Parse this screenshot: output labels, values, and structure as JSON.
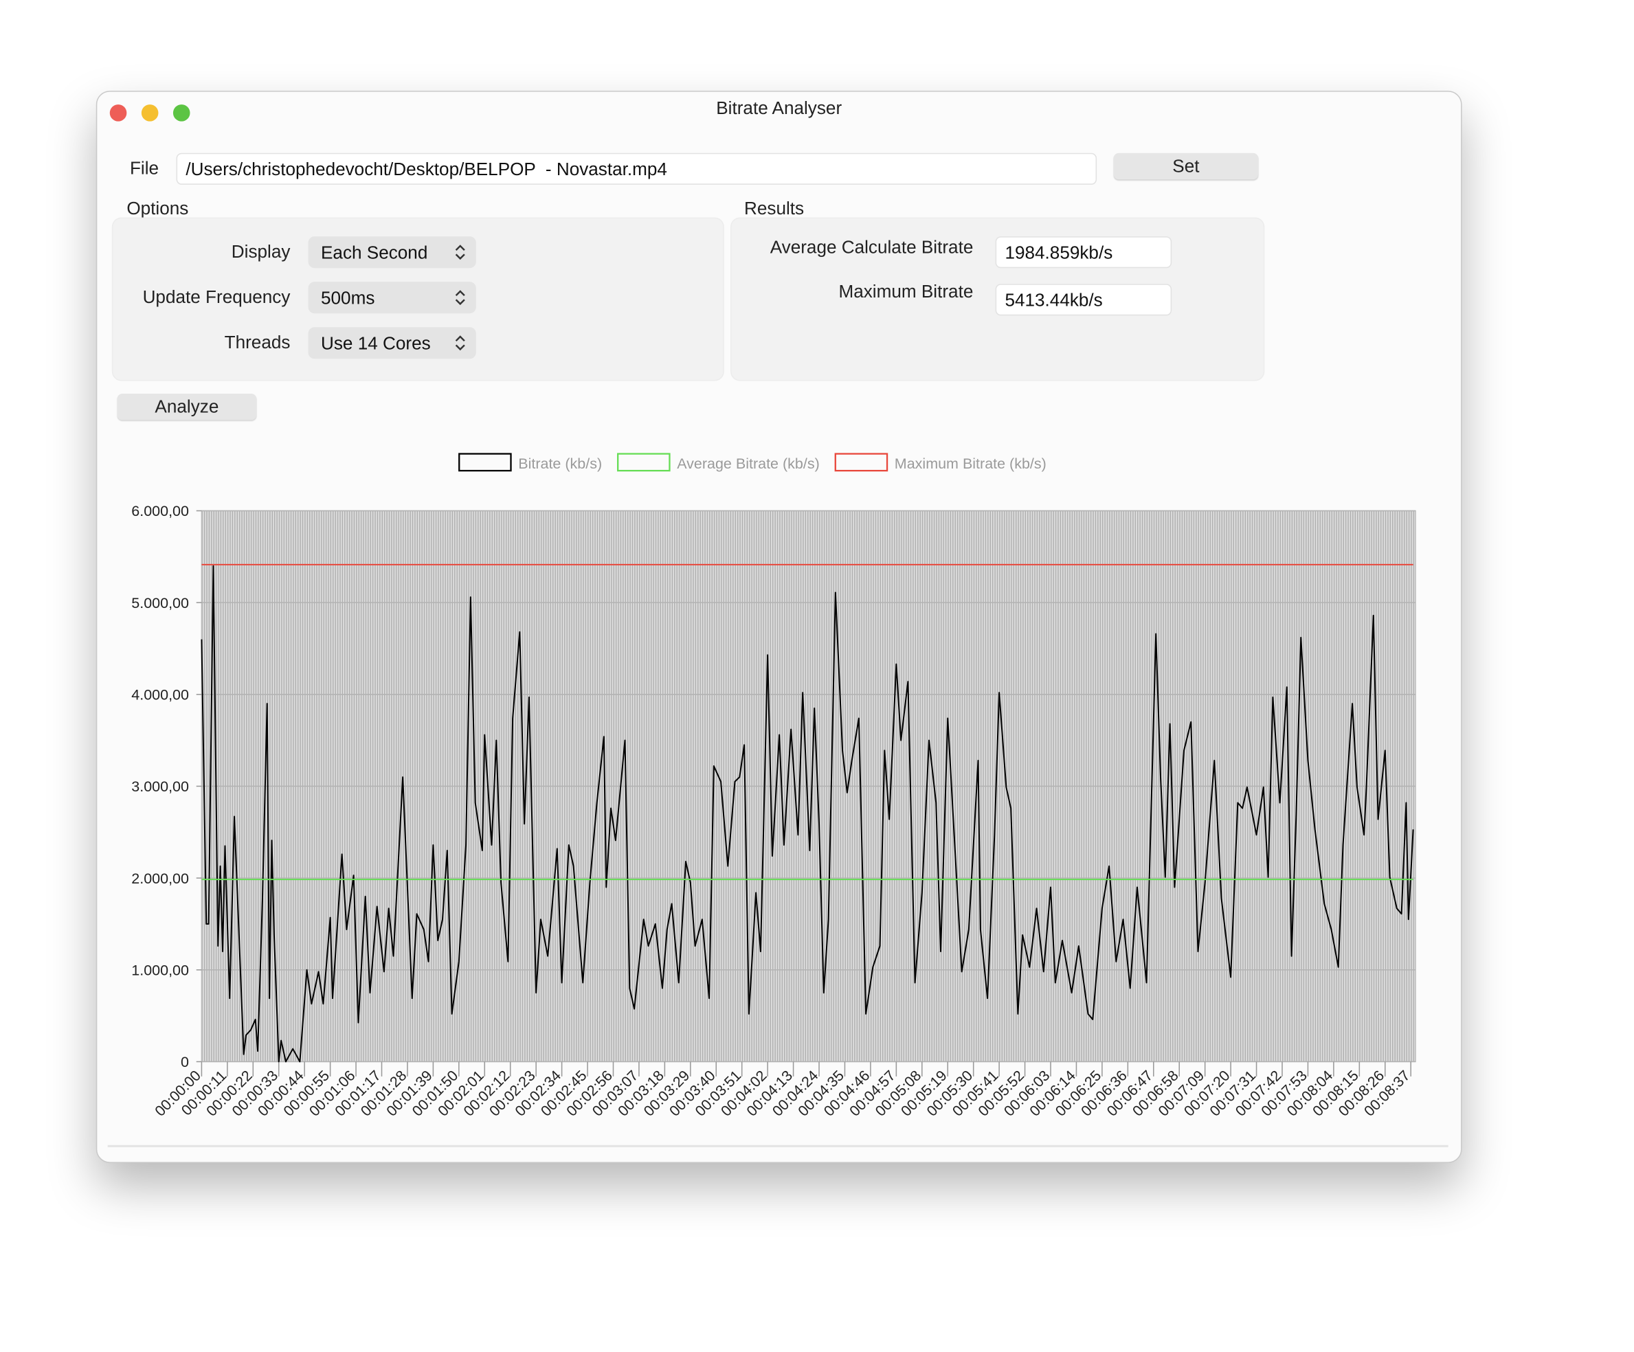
{
  "window": {
    "title": "Bitrate Analyser"
  },
  "file": {
    "label": "File",
    "path": "/Users/christophedevocht/Desktop/BELPOP  - Novastar.mp4",
    "button": "Set"
  },
  "options": {
    "title": "Options",
    "rows": [
      {
        "label": "Display",
        "value": "Each Second"
      },
      {
        "label": "Update Frequency",
        "value": "500ms"
      },
      {
        "label": "Threads",
        "value": "Use 14 Cores"
      }
    ]
  },
  "results": {
    "title": "Results",
    "rows": [
      {
        "label": "Average Calculate Bitrate",
        "value": "1984.859kb/s"
      },
      {
        "label": "Maximum Bitrate",
        "value": "5413.44kb/s"
      }
    ]
  },
  "analyze_button": "Analyze",
  "chart_data": {
    "type": "line",
    "series": [
      {
        "name": "Bitrate (kb/s)",
        "color": "#000000",
        "x": [
          0,
          2,
          3,
          5,
          7,
          8,
          9,
          10,
          12,
          14,
          18,
          19,
          21,
          23,
          24,
          26,
          28,
          29,
          30,
          31,
          33,
          34,
          36,
          39,
          42,
          45,
          47,
          50,
          52,
          55,
          56,
          60,
          62,
          65,
          67,
          70,
          72,
          75,
          78,
          80,
          82,
          86,
          88,
          90,
          92,
          95,
          97,
          99,
          101,
          103,
          105,
          107,
          110,
          113,
          115,
          117,
          120,
          121,
          124,
          126,
          128,
          131,
          133,
          136,
          138,
          140,
          143,
          145,
          148,
          152,
          154,
          157,
          159,
          163,
          166,
          169,
          172,
          173,
          175,
          177,
          181,
          183,
          185,
          189,
          191,
          194,
          197,
          199,
          201,
          204,
          207,
          209,
          211,
          214,
          217,
          219,
          222,
          225,
          228,
          230,
          232,
          234,
          237,
          239,
          242,
          244,
          247,
          249,
          252,
          255,
          257,
          260,
          262,
          264,
          266,
          268,
          271,
          274,
          276,
          278,
          281,
          284,
          287,
          290,
          292,
          294,
          297,
          299,
          302,
          305,
          308,
          311,
          314,
          316,
          319,
          322,
          325,
          328,
          332,
          333,
          336,
          339,
          341,
          344,
          346,
          349,
          351,
          354,
          357,
          360,
          363,
          365,
          368,
          372,
          375,
          379,
          381,
          385,
          388,
          391,
          394,
          397,
          400,
          404,
          408,
          410,
          412,
          414,
          416,
          420,
          423,
          426,
          429,
          433,
          436,
          440,
          443,
          445,
          447,
          451,
          454,
          456,
          458,
          461,
          464,
          466,
          468,
          470,
          473,
          476,
          480,
          483,
          486,
          488,
          492,
          494,
          497,
          498,
          501,
          503,
          506,
          508,
          511,
          513,
          515,
          516,
          518
        ],
        "values": [
          4600,
          1500,
          1500,
          5400,
          1260,
          2130,
          1200,
          2350,
          690,
          2670,
          80,
          290,
          345,
          460,
          115,
          1760,
          3900,
          690,
          2410,
          1380,
          0,
          230,
          0,
          140,
          0,
          1000,
          630,
          980,
          630,
          1570,
          690,
          2260,
          1440,
          2030,
          425,
          1800,
          750,
          1690,
          980,
          1670,
          1150,
          3100,
          1900,
          690,
          1610,
          1440,
          1090,
          2360,
          1320,
          1550,
          2300,
          520,
          1090,
          2360,
          5060,
          2820,
          2300,
          3560,
          2360,
          3500,
          1950,
          1090,
          3740,
          4680,
          2590,
          3970,
          750,
          1550,
          1150,
          2320,
          860,
          2360,
          2130,
          860,
          1950,
          2820,
          3540,
          1900,
          2760,
          2410,
          3500,
          800,
          575,
          1550,
          1260,
          1500,
          800,
          1440,
          1720,
          860,
          2180,
          1950,
          1260,
          1550,
          690,
          3220,
          3050,
          2130,
          3050,
          3100,
          3450,
          520,
          1840,
          1200,
          4430,
          2240,
          3560,
          2360,
          3620,
          2470,
          4020,
          2300,
          3850,
          2590,
          750,
          1550,
          5110,
          3390,
          2930,
          3280,
          3740,
          520,
          1030,
          1260,
          3390,
          2640,
          4330,
          3500,
          4140,
          860,
          1840,
          3500,
          2820,
          1200,
          3740,
          2360,
          980,
          1440,
          3280,
          1440,
          690,
          2470,
          4020,
          2990,
          2760,
          520,
          1380,
          1030,
          1670,
          980,
          1900,
          860,
          1320,
          750,
          1260,
          520,
          460,
          1670,
          2130,
          1090,
          1550,
          800,
          1900,
          860,
          4660,
          3100,
          2010,
          3680,
          1900,
          3390,
          3700,
          1200,
          1950,
          3280,
          1780,
          920,
          2820,
          2760,
          2990,
          2470,
          2990,
          2010,
          3970,
          2820,
          4080,
          1150,
          2700,
          4620,
          3280,
          2530,
          1720,
          1440,
          1030,
          2360,
          3900,
          2990,
          2470,
          2990,
          4860,
          2640,
          3390,
          2010,
          1670,
          1610,
          2820,
          1550,
          2530
        ]
      },
      {
        "name": "Average Bitrate (kb/s)",
        "color": "#66dd55",
        "x": [
          0,
          518
        ],
        "values": [
          1984.859,
          1984.859
        ]
      },
      {
        "name": "Maximum Bitrate (kb/s)",
        "color": "#e8483c",
        "x": [
          0,
          518
        ],
        "values": [
          5413.44,
          5413.44
        ]
      }
    ],
    "xlim": [
      0,
      519
    ],
    "xticks": [
      {
        "value": 0,
        "label": "00:00:00"
      },
      {
        "value": 11,
        "label": "00:00:11"
      },
      {
        "value": 22,
        "label": "00:00:22"
      },
      {
        "value": 33,
        "label": "00:00:33"
      },
      {
        "value": 44,
        "label": "00:00:44"
      },
      {
        "value": 55,
        "label": "00:00:55"
      },
      {
        "value": 66,
        "label": "00:01:06"
      },
      {
        "value": 77,
        "label": "00:01:17"
      },
      {
        "value": 88,
        "label": "00:01:28"
      },
      {
        "value": 99,
        "label": "00:01:39"
      },
      {
        "value": 110,
        "label": "00:01:50"
      },
      {
        "value": 121,
        "label": "00:02:01"
      },
      {
        "value": 132,
        "label": "00:02:12"
      },
      {
        "value": 143,
        "label": "00:02:23"
      },
      {
        "value": 154,
        "label": "00:02:34"
      },
      {
        "value": 165,
        "label": "00:02:45"
      },
      {
        "value": 176,
        "label": "00:02:56"
      },
      {
        "value": 187,
        "label": "00:03:07"
      },
      {
        "value": 198,
        "label": "00:03:18"
      },
      {
        "value": 209,
        "label": "00:03:29"
      },
      {
        "value": 220,
        "label": "00:03:40"
      },
      {
        "value": 231,
        "label": "00:03:51"
      },
      {
        "value": 242,
        "label": "00:04:02"
      },
      {
        "value": 253,
        "label": "00:04:13"
      },
      {
        "value": 264,
        "label": "00:04:24"
      },
      {
        "value": 275,
        "label": "00:04:35"
      },
      {
        "value": 286,
        "label": "00:04:46"
      },
      {
        "value": 297,
        "label": "00:04:57"
      },
      {
        "value": 308,
        "label": "00:05:08"
      },
      {
        "value": 319,
        "label": "00:05:19"
      },
      {
        "value": 330,
        "label": "00:05:30"
      },
      {
        "value": 341,
        "label": "00:05:41"
      },
      {
        "value": 352,
        "label": "00:05:52"
      },
      {
        "value": 363,
        "label": "00:06:03"
      },
      {
        "value": 374,
        "label": "00:06:14"
      },
      {
        "value": 385,
        "label": "00:06:25"
      },
      {
        "value": 396,
        "label": "00:06:36"
      },
      {
        "value": 407,
        "label": "00:06:47"
      },
      {
        "value": 418,
        "label": "00:06:58"
      },
      {
        "value": 429,
        "label": "00:07:09"
      },
      {
        "value": 440,
        "label": "00:07:20"
      },
      {
        "value": 451,
        "label": "00:07:31"
      },
      {
        "value": 462,
        "label": "00:07:42"
      },
      {
        "value": 473,
        "label": "00:07:53"
      },
      {
        "value": 484,
        "label": "00:08:04"
      },
      {
        "value": 495,
        "label": "00:08:15"
      },
      {
        "value": 506,
        "label": "00:08:26"
      },
      {
        "value": 517,
        "label": "00:08:37"
      }
    ],
    "ylim": [
      0,
      6000
    ],
    "yticks": [
      0,
      {
        "value": 1000,
        "label": "1.000,00"
      },
      {
        "value": 2000,
        "label": "2.000,00"
      },
      {
        "value": 3000,
        "label": "3.000,00"
      },
      {
        "value": 4000,
        "label": "4.000,00"
      },
      {
        "value": 5000,
        "label": "5.000,00"
      },
      {
        "value": 6000,
        "label": "6.000,00"
      }
    ],
    "grid": true
  }
}
